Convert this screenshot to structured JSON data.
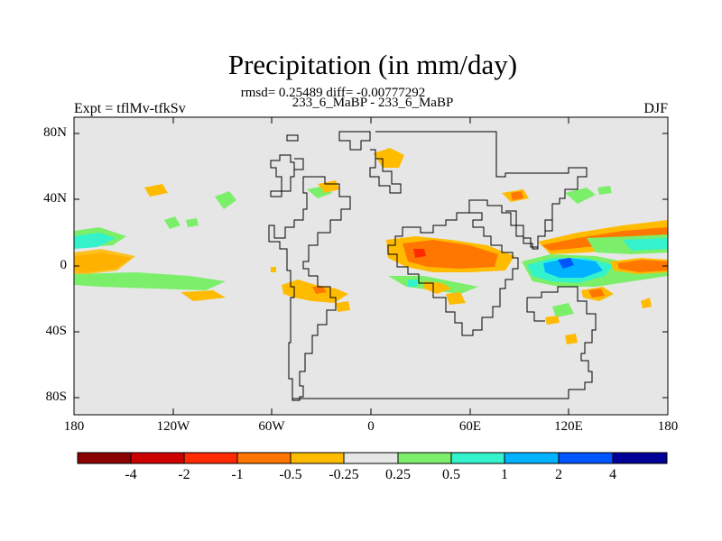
{
  "title": "Precipitation (in mm/day)",
  "stats_line": "rmsd= 0.25489 diff= -0.00777292",
  "runs_line": "233_6_MaBP - 233_6_MaBP",
  "expt_label": "Expt = tflMv-tfkSv",
  "season": "DJF",
  "lat_ticks": [
    "80N",
    "40N",
    "0",
    "40S",
    "80S"
  ],
  "lon_ticks": [
    "180",
    "120W",
    "60W",
    "0",
    "60E",
    "120E",
    "180"
  ],
  "colorbar": {
    "labels": [
      "-4",
      "-2",
      "-1",
      "-0.5",
      "-0.25",
      "0.25",
      "0.5",
      "1",
      "2",
      "4"
    ],
    "colors": [
      "#8b0000",
      "#cd0000",
      "#ff2a00",
      "#ff7700",
      "#ffbb00",
      "#e6e6e6",
      "#7bef6a",
      "#33f2cc",
      "#00b2ff",
      "#0055ff",
      "#000099"
    ]
  },
  "colors": {
    "background": "#e6e6e6",
    "coastline": "#000000"
  }
}
